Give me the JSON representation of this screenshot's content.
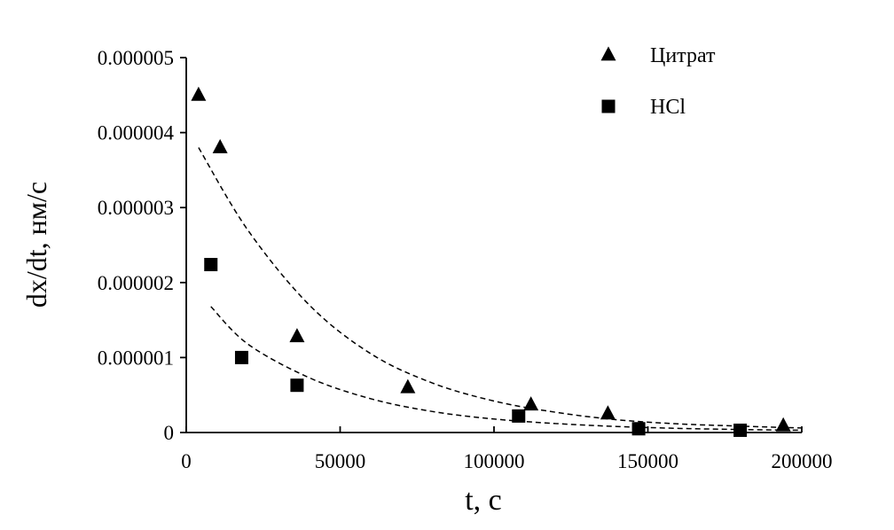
{
  "chart_data": {
    "type": "scatter",
    "xlabel": "t,  с",
    "ylabel": "dx/dt,  нм/с",
    "xlim": [
      0,
      200000
    ],
    "ylim": [
      0,
      5e-06
    ],
    "x_ticks": [
      {
        "value": 0,
        "label": "0"
      },
      {
        "value": 50000,
        "label": "50000"
      },
      {
        "value": 100000,
        "label": "100000"
      },
      {
        "value": 150000,
        "label": "150000"
      },
      {
        "value": 200000,
        "label": "200000"
      }
    ],
    "y_ticks": [
      {
        "value": 0,
        "label": "0"
      },
      {
        "value": 1e-06,
        "label": "0.000001"
      },
      {
        "value": 2e-06,
        "label": "0.000002"
      },
      {
        "value": 3e-06,
        "label": "0.000003"
      },
      {
        "value": 4e-06,
        "label": "0.000004"
      },
      {
        "value": 5e-06,
        "label": "0.000005"
      }
    ],
    "grid": false,
    "legend_position": "top-right",
    "series": [
      {
        "name": "Цитрат",
        "marker": "triangle",
        "color": "#000000",
        "points": [
          {
            "x": 4000,
            "y": 4.5e-06
          },
          {
            "x": 11000,
            "y": 3.8e-06
          },
          {
            "x": 36000,
            "y": 1.28e-06
          },
          {
            "x": 72000,
            "y": 6e-07
          },
          {
            "x": 112000,
            "y": 3.7e-07
          },
          {
            "x": 137000,
            "y": 2.5e-07
          },
          {
            "x": 194000,
            "y": 9e-08
          }
        ]
      },
      {
        "name": "HCl",
        "marker": "square",
        "color": "#000000",
        "points": [
          {
            "x": 8000,
            "y": 2.24e-06
          },
          {
            "x": 18000,
            "y": 1e-06
          },
          {
            "x": 36000,
            "y": 6.3e-07
          },
          {
            "x": 108000,
            "y": 2.2e-07
          },
          {
            "x": 147000,
            "y": 5e-08
          },
          {
            "x": 180000,
            "y": 3e-08
          }
        ]
      }
    ],
    "trendlines": [
      {
        "series": "Цитрат",
        "style": "dashed",
        "color": "#000000",
        "x_start": 4000,
        "x_end": 200000,
        "points": [
          {
            "x": 4000,
            "y": 3.8e-06
          },
          {
            "x": 20000,
            "y": 2.7e-06
          },
          {
            "x": 40000,
            "y": 1.7e-06
          },
          {
            "x": 60000,
            "y": 1.05e-06
          },
          {
            "x": 80000,
            "y": 6.6e-07
          },
          {
            "x": 100000,
            "y": 4.2e-07
          },
          {
            "x": 120000,
            "y": 2.7e-07
          },
          {
            "x": 140000,
            "y": 1.7e-07
          },
          {
            "x": 160000,
            "y": 1.15e-07
          },
          {
            "x": 180000,
            "y": 8.5e-08
          },
          {
            "x": 200000,
            "y": 6e-08
          }
        ]
      },
      {
        "series": "HCl",
        "style": "dashed",
        "color": "#000000",
        "x_start": 8000,
        "x_end": 200000,
        "points": [
          {
            "x": 8000,
            "y": 1.68e-06
          },
          {
            "x": 20000,
            "y": 1.18e-06
          },
          {
            "x": 40000,
            "y": 7.3e-07
          },
          {
            "x": 60000,
            "y": 4.5e-07
          },
          {
            "x": 80000,
            "y": 2.8e-07
          },
          {
            "x": 100000,
            "y": 1.8e-07
          },
          {
            "x": 120000,
            "y": 1.2e-07
          },
          {
            "x": 140000,
            "y": 8e-08
          },
          {
            "x": 160000,
            "y": 5.5e-08
          },
          {
            "x": 180000,
            "y": 4e-08
          },
          {
            "x": 200000,
            "y": 3e-08
          }
        ]
      }
    ]
  }
}
